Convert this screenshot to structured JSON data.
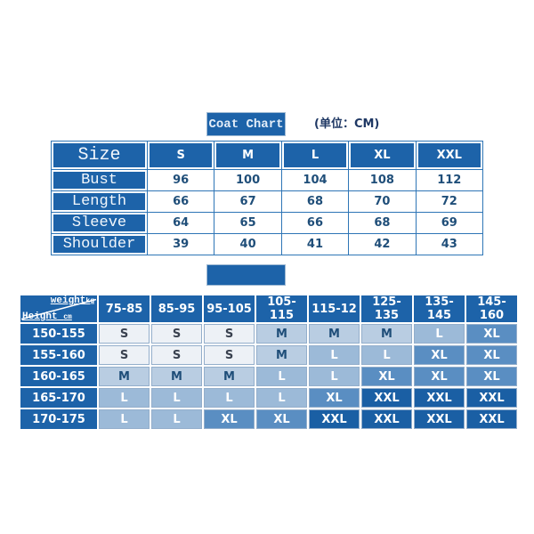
{
  "chart_data": [
    {
      "type": "table",
      "title": "Coat Chart",
      "unit_note": "(单位：CM)",
      "columns": [
        "Size",
        "S",
        "M",
        "L",
        "XL",
        "XXL"
      ],
      "rows": [
        [
          "Bust",
          "96",
          "100",
          "104",
          "108",
          "112"
        ],
        [
          "Length",
          "66",
          "67",
          "68",
          "70",
          "72"
        ],
        [
          "Sleeve",
          "64",
          "65",
          "66",
          "68",
          "69"
        ],
        [
          "Shoulder",
          "39",
          "40",
          "41",
          "42",
          "43"
        ]
      ]
    },
    {
      "type": "table",
      "corner": {
        "top_label": "weight",
        "top_unit": "kg",
        "bottom_label": "Height",
        "bottom_unit": "cm"
      },
      "columns": [
        "75-85",
        "85-95",
        "95-105",
        "105-115",
        "115-12",
        "125-135",
        "135-145",
        "145-160"
      ],
      "row_headers": [
        "150-155",
        "155-160",
        "160-165",
        "165-170",
        "170-175"
      ],
      "cells": [
        [
          "S",
          "S",
          "S",
          "M",
          "M",
          "M",
          "L",
          "XL"
        ],
        [
          "S",
          "S",
          "S",
          "M",
          "L",
          "L",
          "XL",
          "XL"
        ],
        [
          "M",
          "M",
          "M",
          "L",
          "L",
          "XL",
          "XL",
          "XL"
        ],
        [
          "L",
          "L",
          "L",
          "L",
          "XL",
          "XXL",
          "XXL",
          "XXL"
        ],
        [
          "L",
          "L",
          "XL",
          "XL",
          "XXL",
          "XXL",
          "XXL",
          "XXL"
        ]
      ]
    }
  ],
  "colors": {
    "header_blue": "#1d63a9",
    "border_blue": "#2e75b6",
    "value_navy": "#1f4e79",
    "title_text": "#e3edf8"
  },
  "size_colors": {
    "S": {
      "bg": "#edf1f6",
      "fg": "#39414f"
    },
    "M": {
      "bg": "#b9cde2",
      "fg": "#1f4e79"
    },
    "L": {
      "bg": "#9cbad8",
      "fg": "#ffffff"
    },
    "XL": {
      "bg": "#5a8ec2",
      "fg": "#ffffff"
    },
    "XXL": {
      "bg": "#1a5fa4",
      "fg": "#ffffff"
    }
  }
}
